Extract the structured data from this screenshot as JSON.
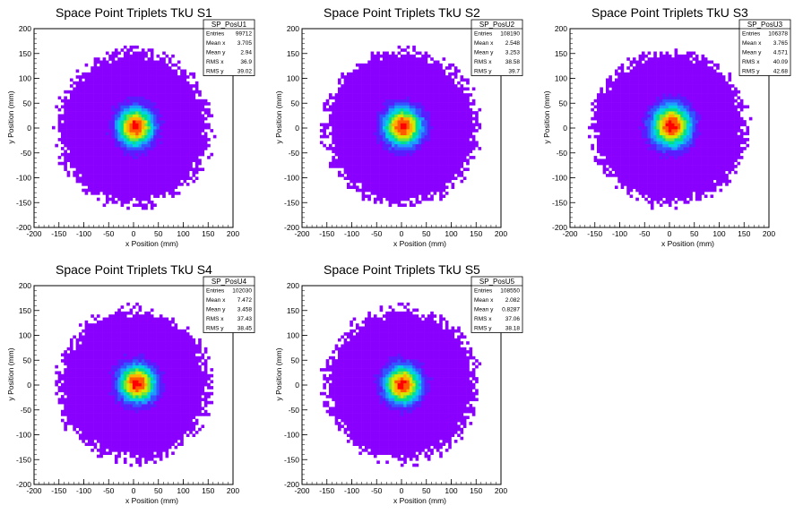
{
  "chart_data": [
    {
      "type": "heatmap",
      "title": "Space Point Triplets TkU S1",
      "xlabel": "x Position (mm)",
      "ylabel": "y Position (mm)",
      "xlim": [
        -200,
        200
      ],
      "ylim": [
        -200,
        200
      ],
      "xticks": [
        -200,
        -150,
        -100,
        -50,
        0,
        50,
        100,
        150,
        200
      ],
      "yticks": [
        -200,
        -150,
        -100,
        -50,
        0,
        50,
        100,
        150,
        200
      ],
      "stats": {
        "name": "SP_PosU1",
        "rows": [
          {
            "label": "Entries",
            "value": "99712"
          },
          {
            "label": "Mean x",
            "value": "3.705"
          },
          {
            "label": "Mean y",
            "value": "2.94"
          },
          {
            "label": "RMS x",
            "value": "36.9"
          },
          {
            "label": "RMS y",
            "value": "39.02"
          }
        ]
      },
      "center": [
        3.705,
        2.94
      ],
      "rms": [
        36.9,
        39.02
      ],
      "extent_radius": 160
    },
    {
      "type": "heatmap",
      "title": "Space Point Triplets TkU S2",
      "xlabel": "x Position (mm)",
      "ylabel": "y Position (mm)",
      "xlim": [
        -200,
        200
      ],
      "ylim": [
        -200,
        200
      ],
      "xticks": [
        -200,
        -150,
        -100,
        -50,
        0,
        50,
        100,
        150,
        200
      ],
      "yticks": [
        -200,
        -150,
        -100,
        -50,
        0,
        50,
        100,
        150,
        200
      ],
      "stats": {
        "name": "SP_PosU2",
        "rows": [
          {
            "label": "Entries",
            "value": "108190"
          },
          {
            "label": "Mean x",
            "value": "2.548"
          },
          {
            "label": "Mean y",
            "value": "3.253"
          },
          {
            "label": "RMS x",
            "value": "38.58"
          },
          {
            "label": "RMS y",
            "value": "39.7"
          }
        ]
      },
      "center": [
        2.548,
        3.253
      ],
      "rms": [
        38.58,
        39.7
      ],
      "extent_radius": 160
    },
    {
      "type": "heatmap",
      "title": "Space Point Triplets TkU S3",
      "xlabel": "x Position (mm)",
      "ylabel": "y Position (mm)",
      "xlim": [
        -200,
        200
      ],
      "ylim": [
        -200,
        200
      ],
      "xticks": [
        -200,
        -150,
        -100,
        -50,
        0,
        50,
        100,
        150,
        200
      ],
      "yticks": [
        -200,
        -150,
        -100,
        -50,
        0,
        50,
        100,
        150,
        200
      ],
      "stats": {
        "name": "SP_PosU3",
        "rows": [
          {
            "label": "Entries",
            "value": "106378"
          },
          {
            "label": "Mean x",
            "value": "3.765"
          },
          {
            "label": "Mean y",
            "value": "4.571"
          },
          {
            "label": "RMS x",
            "value": "40.09"
          },
          {
            "label": "RMS y",
            "value": "42.68"
          }
        ]
      },
      "center": [
        3.765,
        4.571
      ],
      "rms": [
        40.09,
        42.68
      ],
      "extent_radius": 160
    },
    {
      "type": "heatmap",
      "title": "Space Point Triplets TkU S4",
      "xlabel": "x Position (mm)",
      "ylabel": "y Position (mm)",
      "xlim": [
        -200,
        200
      ],
      "ylim": [
        -200,
        200
      ],
      "xticks": [
        -200,
        -150,
        -100,
        -50,
        0,
        50,
        100,
        150,
        200
      ],
      "yticks": [
        -200,
        -150,
        -100,
        -50,
        0,
        50,
        100,
        150,
        200
      ],
      "stats": {
        "name": "SP_PosU4",
        "rows": [
          {
            "label": "Entries",
            "value": "102030"
          },
          {
            "label": "Mean x",
            "value": "7.472"
          },
          {
            "label": "Mean y",
            "value": "3.458"
          },
          {
            "label": "RMS x",
            "value": "37.43"
          },
          {
            "label": "RMS y",
            "value": "38.45"
          }
        ]
      },
      "center": [
        7.472,
        3.458
      ],
      "rms": [
        37.43,
        38.45
      ],
      "extent_radius": 158
    },
    {
      "type": "heatmap",
      "title": "Space Point Triplets TkU S5",
      "xlabel": "x Position (mm)",
      "ylabel": "y Position (mm)",
      "xlim": [
        -200,
        200
      ],
      "ylim": [
        -200,
        200
      ],
      "xticks": [
        -200,
        -150,
        -100,
        -50,
        0,
        50,
        100,
        150,
        200
      ],
      "yticks": [
        -200,
        -150,
        -100,
        -50,
        0,
        50,
        100,
        150,
        200
      ],
      "stats": {
        "name": "SP_PosU5",
        "rows": [
          {
            "label": "Entries",
            "value": "108550"
          },
          {
            "label": "Mean x",
            "value": "2.082"
          },
          {
            "label": "Mean y",
            "value": "0.8287"
          },
          {
            "label": "RMS x",
            "value": "37.06"
          },
          {
            "label": "RMS y",
            "value": "38.18"
          }
        ]
      },
      "center": [
        2.082,
        0.8287
      ],
      "rms": [
        37.06,
        38.18
      ],
      "extent_radius": 158
    }
  ],
  "colors": {
    "palette": [
      "#8a00ff",
      "#5a1cff",
      "#3355ff",
      "#1e9bff",
      "#00d4e0",
      "#00e08a",
      "#6ee83a",
      "#d6e800",
      "#ffb000",
      "#ff5a00",
      "#ff0000"
    ],
    "axis": "#000000",
    "background": "#ffffff"
  }
}
